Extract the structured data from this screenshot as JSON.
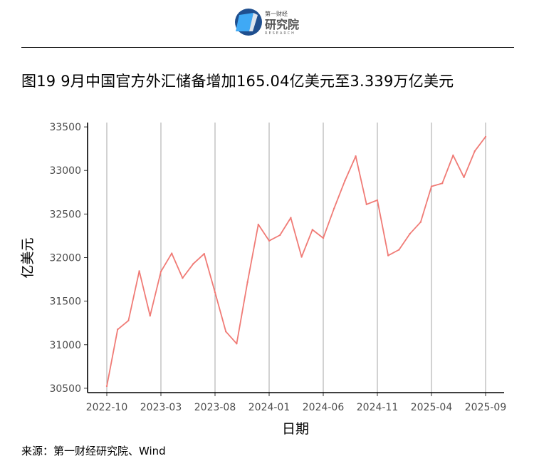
{
  "header": {
    "logo_line1": "第一财经",
    "logo_line2": "研究院",
    "logo_line3": "RESEARCH"
  },
  "chart_data": {
    "type": "line",
    "title": "图19 9月中国官方外汇储备增加165.04亿美元至3.339万亿美元",
    "xlabel": "日期",
    "ylabel": "亿美元",
    "ylim": [
      30450,
      33550
    ],
    "yticks": [
      30500,
      31000,
      31500,
      32000,
      32500,
      33000,
      33500
    ],
    "x_tick_labels": [
      "2022-10",
      "2023-03",
      "2023-08",
      "2024-01",
      "2024-06",
      "2024-11",
      "2025-04",
      "2025-09"
    ],
    "grid": "vertical",
    "color": "#f07b76",
    "series": [
      {
        "x": [
          "2022-10",
          "2022-11",
          "2022-12",
          "2023-01",
          "2023-02",
          "2023-03",
          "2023-04",
          "2023-05",
          "2023-06",
          "2023-07",
          "2023-08",
          "2023-09",
          "2023-10",
          "2023-11",
          "2023-12",
          "2024-01",
          "2024-02",
          "2024-03",
          "2024-04",
          "2024-05",
          "2024-06",
          "2024-07",
          "2024-08",
          "2024-09",
          "2024-10",
          "2024-11",
          "2024-12",
          "2025-01",
          "2025-02",
          "2025-03",
          "2025-04",
          "2025-05",
          "2025-06",
          "2025-07",
          "2025-08",
          "2025-09"
        ],
        "values": [
          30524,
          31175,
          31277,
          31845,
          31332,
          31839,
          32048,
          31765,
          31930,
          32043,
          31601,
          31151,
          31012,
          31718,
          32380,
          32193,
          32258,
          32457,
          32008,
          32320,
          32224,
          32564,
          32882,
          33164,
          32611,
          32659,
          32024,
          32090,
          32272,
          32407,
          32817,
          32853,
          33174,
          32922,
          33222,
          33387
        ]
      }
    ]
  },
  "source": "来源：第一财经研究院、Wind"
}
